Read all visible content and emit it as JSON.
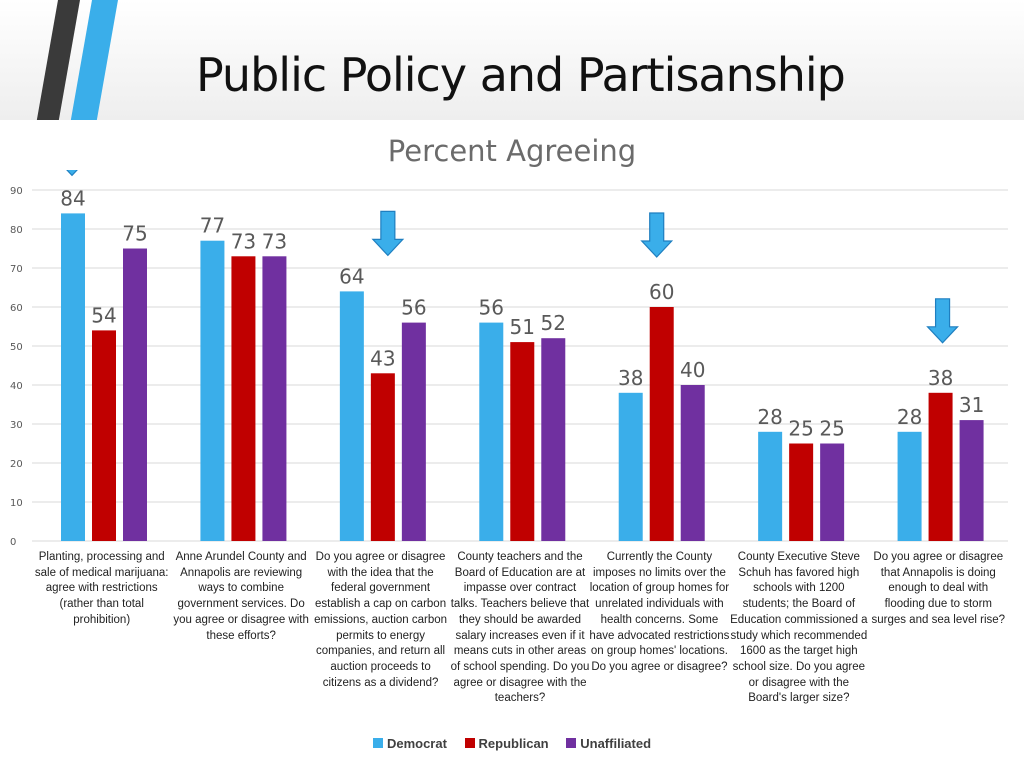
{
  "slide": {
    "title": "Public Policy and Partisanship"
  },
  "colors": {
    "democrat": "#3aaeea",
    "republican": "#c00000",
    "unaffiliated": "#7030a0",
    "arrow": "#3aaeea"
  },
  "icons": [
    "down-arrow-icon"
  ],
  "chart_data": {
    "type": "bar",
    "title": "Percent Agreeing",
    "xlabel": "",
    "ylabel": "",
    "ylim": [
      0,
      90
    ],
    "yticks": [
      "0",
      "10",
      "20",
      "30",
      "40",
      "50",
      "60",
      "70",
      "80",
      "90"
    ],
    "grid": true,
    "legend_position": "bottom",
    "categories": [
      "Planting, processing and sale of medical marijuana: agree with restrictions (rather than total prohibition)",
      "Anne Arundel County and Annapolis are reviewing ways to combine government services. Do you agree or disagree with these efforts?",
      "Do you agree or disagree with the idea that the federal government establish a cap on carbon emissions, auction carbon permits to energy companies, and return all auction proceeds to citizens as a dividend?",
      "County teachers and the Board of Education are at impasse over contract talks. Teachers believe that they should be awarded salary increases even if it means cuts in other areas of school spending. Do you agree or disagree with the teachers?",
      "Currently the County imposes no limits over the location of group homes for unrelated individuals with health concerns. Some have advocated restrictions on group homes' locations. Do you agree or disagree?",
      "County Executive Steve Schuh has favored high schools with 1200 students; the Board of Education commissioned a study which recommended 1600 as the target high school size. Do you agree or disagree with the Board's larger size?",
      "Do you agree or disagree that Annapolis is doing enough to deal with flooding due to storm surges and sea level rise?"
    ],
    "series": [
      {
        "name": "Democrat",
        "values": [
          84,
          77,
          64,
          56,
          38,
          28,
          28
        ]
      },
      {
        "name": "Republican",
        "values": [
          54,
          73,
          43,
          51,
          60,
          25,
          38
        ]
      },
      {
        "name": "Unaffiliated",
        "values": [
          75,
          73,
          56,
          52,
          40,
          25,
          31
        ]
      }
    ],
    "highlighted_categories": [
      0,
      2,
      4,
      6
    ]
  }
}
